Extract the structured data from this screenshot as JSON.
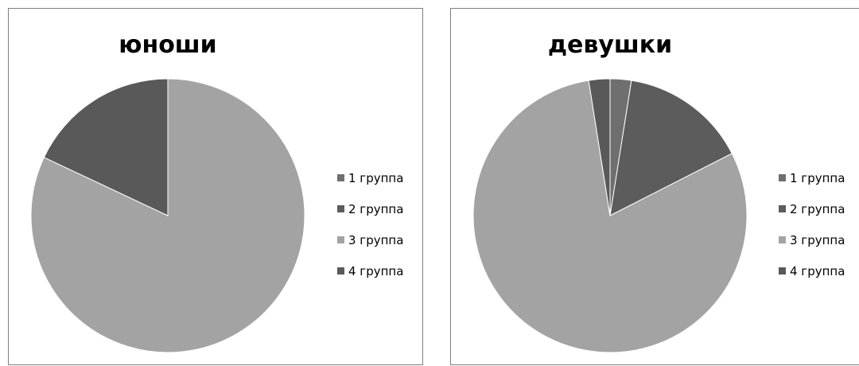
{
  "chart_data": [
    {
      "type": "pie",
      "title": "юноши",
      "legend_position": "right",
      "categories": [
        "1 группа",
        "2 группа",
        "3 группа",
        "4 группа"
      ],
      "values": [
        0,
        0,
        82,
        18
      ],
      "colors": [
        "#6f6f6f",
        "#5c5c5c",
        "#a3a3a3",
        "#595959"
      ]
    },
    {
      "type": "pie",
      "title": "девушки",
      "legend_position": "right",
      "categories": [
        "1 группа",
        "2 группа",
        "3 группа",
        "4 группа"
      ],
      "values": [
        2.5,
        15,
        80,
        2.5
      ],
      "colors": [
        "#6f6f6f",
        "#5c5c5c",
        "#a3a3a3",
        "#595959"
      ]
    }
  ]
}
